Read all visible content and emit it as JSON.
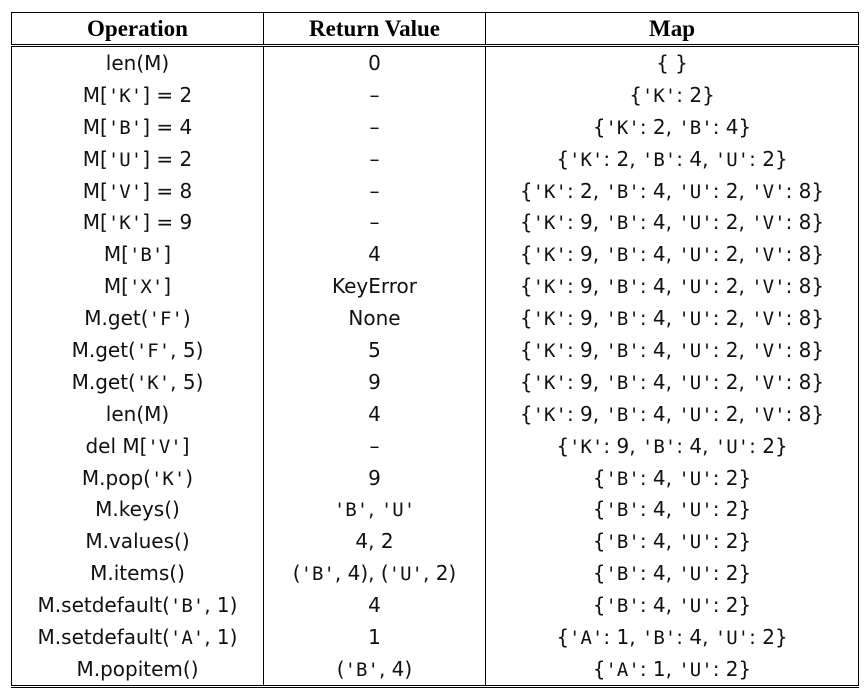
{
  "table": {
    "headers": [
      "Operation",
      "Return Value",
      "Map"
    ],
    "rows": [
      {
        "operation": "len(M)",
        "return_value": "0",
        "map": "{ }"
      },
      {
        "operation": "M['K'] = 2",
        "return_value": "–",
        "map": "{'K': 2}"
      },
      {
        "operation": "M['B'] = 4",
        "return_value": "–",
        "map": "{'K': 2, 'B': 4}"
      },
      {
        "operation": "M['U'] = 2",
        "return_value": "–",
        "map": "{'K': 2, 'B': 4, 'U': 2}"
      },
      {
        "operation": "M['V'] = 8",
        "return_value": "–",
        "map": "{'K': 2, 'B': 4, 'U': 2, 'V': 8}"
      },
      {
        "operation": "M['K'] = 9",
        "return_value": "–",
        "map": "{'K': 9, 'B': 4, 'U': 2, 'V': 8}"
      },
      {
        "operation": "M['B']",
        "return_value": "4",
        "map": "{'K': 9, 'B': 4, 'U': 2, 'V': 8}"
      },
      {
        "operation": "M['X']",
        "return_value": "KeyError",
        "map": "{'K': 9, 'B': 4, 'U': 2, 'V': 8}"
      },
      {
        "operation": "M.get('F')",
        "return_value": "None",
        "map": "{'K': 9, 'B': 4, 'U': 2, 'V': 8}"
      },
      {
        "operation": "M.get('F', 5)",
        "return_value": "5",
        "map": "{'K': 9, 'B': 4, 'U': 2, 'V': 8}"
      },
      {
        "operation": "M.get('K', 5)",
        "return_value": "9",
        "map": "{'K': 9, 'B': 4, 'U': 2, 'V': 8}"
      },
      {
        "operation": "len(M)",
        "return_value": "4",
        "map": "{'K': 9, 'B': 4, 'U': 2, 'V': 8}"
      },
      {
        "operation": "del M['V']",
        "return_value": "–",
        "map": "{'K': 9, 'B': 4, 'U': 2}"
      },
      {
        "operation": "M.pop('K')",
        "return_value": "9",
        "map": "{'B': 4, 'U': 2}"
      },
      {
        "operation": "M.keys()",
        "return_value": "'B', 'U'",
        "map": "{'B': 4, 'U': 2}"
      },
      {
        "operation": "M.values()",
        "return_value": "4, 2",
        "map": "{'B': 4, 'U': 2}"
      },
      {
        "operation": "M.items()",
        "return_value": "('B', 4), ('U', 2)",
        "map": "{'B': 4, 'U': 2}"
      },
      {
        "operation": "M.setdefault('B', 1)",
        "return_value": "4",
        "map": "{'B': 4, 'U': 2}"
      },
      {
        "operation": "M.setdefault('A', 1)",
        "return_value": "1",
        "map": "{'A': 1, 'B': 4, 'U': 2}"
      },
      {
        "operation": "M.popitem()",
        "return_value": "('B', 4)",
        "map": "{'A': 1, 'U': 2}"
      }
    ]
  }
}
